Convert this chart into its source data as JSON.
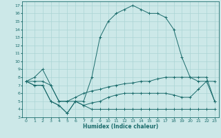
{
  "xlabel": "Humidex (Indice chaleur)",
  "xlim": [
    -0.5,
    23.5
  ],
  "ylim": [
    3,
    17.5
  ],
  "xticks": [
    0,
    1,
    2,
    3,
    4,
    5,
    6,
    7,
    8,
    9,
    10,
    11,
    12,
    13,
    14,
    15,
    16,
    17,
    18,
    19,
    20,
    21,
    22,
    23
  ],
  "yticks": [
    3,
    4,
    5,
    6,
    7,
    8,
    9,
    10,
    11,
    12,
    13,
    14,
    15,
    16,
    17
  ],
  "bg_color": "#cce8e8",
  "line_color": "#1a6b6b",
  "grid_color": "#aad4d4",
  "lines": [
    {
      "x": [
        0,
        1,
        2,
        3,
        4,
        5,
        6,
        7,
        8,
        9,
        10,
        11,
        12,
        13,
        14,
        15,
        16,
        17,
        18,
        19,
        20,
        21,
        22,
        23
      ],
      "y": [
        7.5,
        8.0,
        9.0,
        7.0,
        5.0,
        5.0,
        5.0,
        5.0,
        8.0,
        13.0,
        15.0,
        16.0,
        16.5,
        17.0,
        16.5,
        16.0,
        16.0,
        15.5,
        14.0,
        10.5,
        8.0,
        8.0,
        8.0,
        5.0
      ]
    },
    {
      "x": [
        0,
        1,
        2,
        3,
        4,
        5,
        6,
        7,
        8,
        9,
        10,
        11,
        12,
        13,
        14,
        15,
        16,
        17,
        18,
        19,
        20,
        21,
        22,
        23
      ],
      "y": [
        7.5,
        7.5,
        7.5,
        7.0,
        5.0,
        5.0,
        5.5,
        6.0,
        6.3,
        6.5,
        6.8,
        7.0,
        7.2,
        7.3,
        7.5,
        7.5,
        7.8,
        8.0,
        8.0,
        8.0,
        8.0,
        7.5,
        7.5,
        7.5
      ]
    },
    {
      "x": [
        0,
        1,
        2,
        3,
        4,
        5,
        6,
        7,
        8,
        9,
        10,
        11,
        12,
        13,
        14,
        15,
        16,
        17,
        18,
        19,
        20,
        21,
        22,
        23
      ],
      "y": [
        7.5,
        7.0,
        7.0,
        5.0,
        4.5,
        3.5,
        5.0,
        4.5,
        4.0,
        4.0,
        4.0,
        4.0,
        4.0,
        4.0,
        4.0,
        4.0,
        4.0,
        4.0,
        4.0,
        4.0,
        4.0,
        4.0,
        4.0,
        4.0
      ]
    },
    {
      "x": [
        0,
        1,
        2,
        3,
        4,
        5,
        6,
        7,
        8,
        9,
        10,
        11,
        12,
        13,
        14,
        15,
        16,
        17,
        18,
        19,
        20,
        21,
        22,
        23
      ],
      "y": [
        7.5,
        7.0,
        7.0,
        5.0,
        4.5,
        3.5,
        5.0,
        4.5,
        4.8,
        5.0,
        5.5,
        5.8,
        6.0,
        6.0,
        6.0,
        6.0,
        6.0,
        6.0,
        5.8,
        5.5,
        5.5,
        6.5,
        7.5,
        5.0
      ]
    }
  ]
}
